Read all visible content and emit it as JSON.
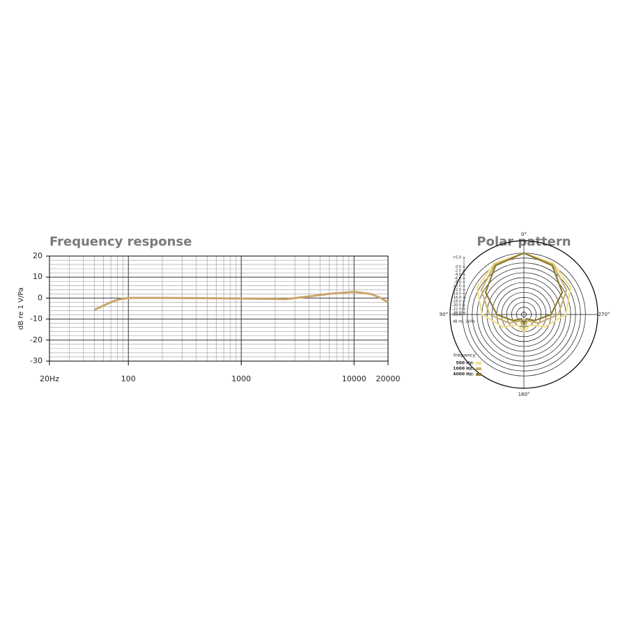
{
  "chart_data": [
    {
      "type": "line",
      "title": "Frequency response",
      "ylabel": "dB re 1 V/Pa",
      "xscale": "log",
      "xlim": [
        20,
        20000
      ],
      "xticks": [
        {
          "value": 20,
          "label": "20Hz"
        },
        100,
        1000,
        10000,
        20000
      ],
      "ylim": [
        -30,
        20
      ],
      "yticks": [
        -30,
        -20,
        -10,
        0,
        10,
        20
      ],
      "grid": true,
      "x": [
        50,
        60,
        70,
        80,
        100,
        200,
        1000,
        2500,
        4000,
        6000,
        10000,
        14000,
        17000,
        20000
      ],
      "series": [
        {
          "name": null,
          "color": "#c9a56a",
          "values": [
            -5.6,
            -3.6,
            -2.0,
            -0.8,
            0.1,
            0.1,
            -0.2,
            -0.5,
            0.8,
            2.0,
            3.0,
            2.0,
            0.2,
            -2.0
          ]
        }
      ]
    },
    {
      "type": "polar",
      "title": "Polar pattern",
      "rlabel": "dB rel. 1V/Pa",
      "legend_title": "Frequency:",
      "clockwise": false,
      "thetaticks": [
        {
          "value": 0,
          "label": "0°"
        },
        {
          "value": 90,
          "label": "90°"
        },
        {
          "value": 180,
          "label": "180°"
        },
        {
          "value": 270,
          "label": "270°"
        }
      ],
      "rlim": [
        -25,
        5
      ],
      "rticks": [
        {
          "value": 5,
          "label": "+5.0"
        },
        {
          "value": 0,
          "label": "0.0"
        },
        {
          "value": -2,
          "label": "-2.0"
        },
        {
          "value": -4,
          "label": "-4.0"
        },
        {
          "value": -6,
          "label": "-6.0"
        },
        {
          "value": -8,
          "label": "-8.0"
        },
        {
          "value": -10,
          "label": "-10.0"
        },
        {
          "value": -12,
          "label": "-12.0"
        },
        {
          "value": -14,
          "label": "-14.0"
        },
        {
          "value": -16,
          "label": "-16.0"
        },
        {
          "value": -18,
          "label": "-18.0"
        },
        {
          "value": -20,
          "label": "-20.0"
        },
        {
          "value": -22,
          "label": "-22.0"
        },
        {
          "value": -24,
          "label": "-24.0"
        },
        {
          "value": -25,
          "label": "-25.0"
        }
      ],
      "theta": [
        0,
        30,
        60,
        90,
        120,
        150,
        180,
        210,
        240,
        270,
        300,
        330
      ],
      "series": [
        {
          "name": "500 Hz:",
          "color": "#f3df8c",
          "values": [
            0,
            -1,
            -3,
            -8,
            -15,
            -20,
            -18,
            -20,
            -15,
            -8,
            -3,
            -1
          ]
        },
        {
          "name": "1000 Hz:",
          "color": "#c8b070",
          "values": [
            0,
            -1.5,
            -5,
            -11,
            -18,
            -22,
            -19,
            -22,
            -18,
            -11,
            -5,
            -1.5
          ]
        },
        {
          "name": "4000 Hz:",
          "color": "#8a7a30",
          "values": [
            0,
            -2,
            -7,
            -14,
            -20,
            -23,
            -21,
            -23,
            -20,
            -14,
            -7,
            -2
          ]
        }
      ]
    }
  ]
}
